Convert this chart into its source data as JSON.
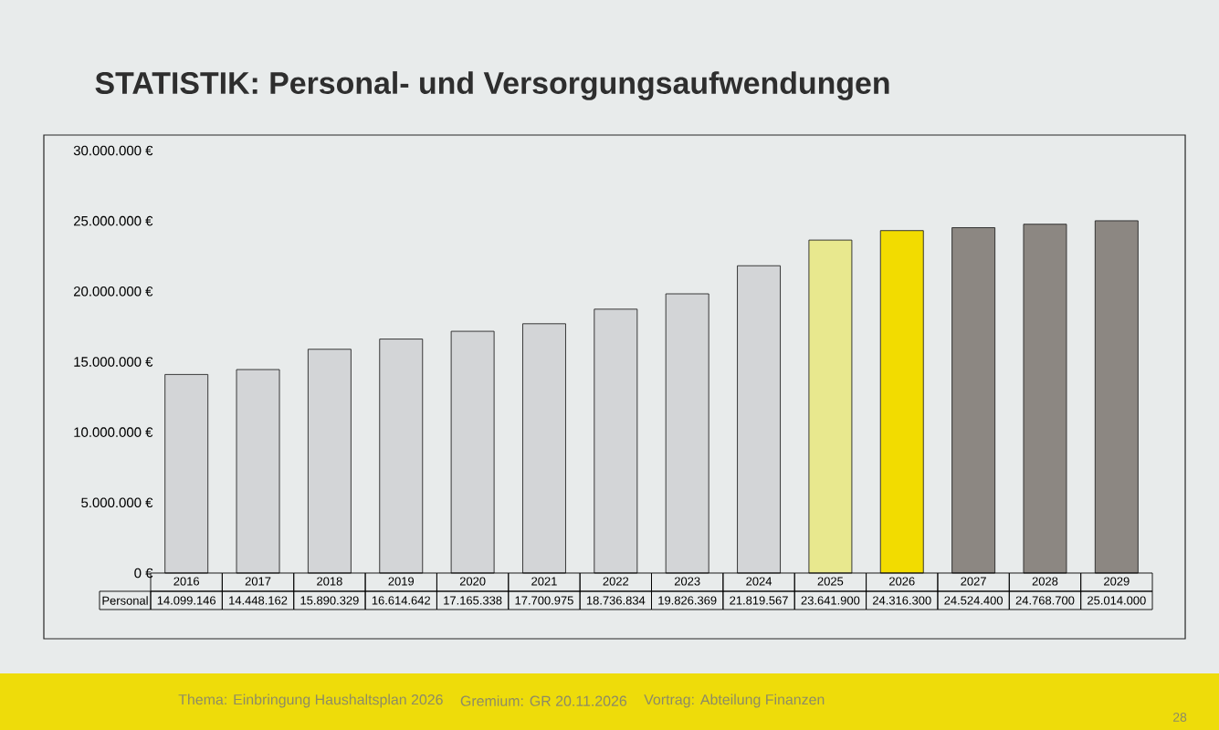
{
  "chart_data": {
    "type": "bar",
    "title": "STATISTIK: Personal- und Versorgungsaufwendungen",
    "categories": [
      "2016",
      "2017",
      "2018",
      "2019",
      "2020",
      "2021",
      "2022",
      "2023",
      "2024",
      "2025",
      "2026",
      "2027",
      "2028",
      "2029"
    ],
    "series": [
      {
        "name": "Personal",
        "colors": [
          "#d3d5d7",
          "#d3d5d7",
          "#d3d5d7",
          "#d3d5d7",
          "#d3d5d7",
          "#d3d5d7",
          "#d3d5d7",
          "#d3d5d7",
          "#d3d5d7",
          "#e8e88e",
          "#f2dc00",
          "#8c8782",
          "#8c8782",
          "#8c8782"
        ],
        "values": [
          14099146,
          14448162,
          15890329,
          16614642,
          17165338,
          17700975,
          18736834,
          19826369,
          21819567,
          23641900,
          24316300,
          24524400,
          24768700,
          25014000
        ],
        "value_labels": [
          "14.099.146",
          "14.448.162",
          "15.890.329",
          "16.614.642",
          "17.165.338",
          "17.700.975",
          "18.736.834",
          "19.826.369",
          "21.819.567",
          "23.641.900",
          "24.316.300",
          "24.524.400",
          "24.768.700",
          "25.014.000"
        ]
      }
    ],
    "ylim": [
      0,
      30000000
    ],
    "yticks": [
      {
        "value": 0,
        "label": "0 €"
      },
      {
        "value": 5000000,
        "label": "5.000.000 €"
      },
      {
        "value": 10000000,
        "label": "10.000.000 €"
      },
      {
        "value": 15000000,
        "label": "15.000.000 €"
      },
      {
        "value": 20000000,
        "label": "20.000.000 €"
      },
      {
        "value": 25000000,
        "label": "25.000.000 €"
      },
      {
        "value": 30000000,
        "label": "30.000.000 €"
      }
    ],
    "annotations": [
      "Thema: Einbringung Haushaltsplan 2026",
      "Gremium: GR 20.11.2026",
      "Vortrag: Abteilung Finanzen",
      "28"
    ]
  }
}
